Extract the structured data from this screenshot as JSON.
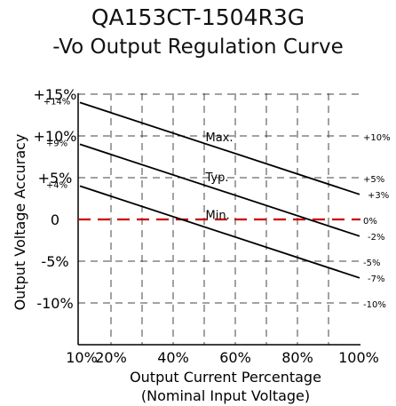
{
  "chart_data": {
    "type": "line",
    "title": "QA153CT-1504R3G",
    "subtitle": "-Vo Output Regulation Curve",
    "xlabel": "Output Current Percentage",
    "xlabel_sub": "(Nominal Input Voltage)",
    "ylabel": "Output Voltage Accuracy",
    "xlim": [
      10,
      100
    ],
    "ylim": [
      -15,
      15
    ],
    "x_ticks": [
      10,
      20,
      40,
      60,
      80,
      100
    ],
    "x_tick_labels": [
      "10%",
      "20%",
      "40%",
      "60%",
      "80%",
      "100%"
    ],
    "x_gridlines": [
      20,
      30,
      40,
      50,
      60,
      70,
      80,
      90
    ],
    "y_gridlines": [
      15,
      10,
      5,
      0,
      -5,
      -10
    ],
    "left_major_ticks": [
      {
        "value": 15,
        "label": "+15%"
      },
      {
        "value": 10,
        "label": "+10%"
      },
      {
        "value": 5,
        "label": "+5%"
      },
      {
        "value": 0,
        "label": "0"
      },
      {
        "value": -5,
        "label": "-5%"
      },
      {
        "value": -10,
        "label": "-10%"
      }
    ],
    "left_minor_labels": [
      {
        "value": 14,
        "label": "+14%"
      },
      {
        "value": 9,
        "label": "+9%"
      },
      {
        "value": 4,
        "label": "+4%"
      }
    ],
    "right_major_labels": [
      {
        "value": 10,
        "label": "+10%"
      },
      {
        "value": 5,
        "label": "+5%"
      },
      {
        "value": 0,
        "label": "0%"
      },
      {
        "value": -5,
        "label": "-5%"
      },
      {
        "value": -10,
        "label": "-10%"
      }
    ],
    "right_minor_labels": [
      {
        "value": 3,
        "label": "+3%"
      },
      {
        "value": -2,
        "label": "-2%"
      },
      {
        "value": -7,
        "label": "-7%"
      }
    ],
    "series": [
      {
        "name": "Max.",
        "x": [
          10,
          100
        ],
        "y": [
          14,
          3
        ],
        "label_x": 47,
        "label_y": 9.8
      },
      {
        "name": "Typ.",
        "x": [
          10,
          100
        ],
        "y": [
          9,
          -2
        ],
        "label_x": 47,
        "label_y": 5
      },
      {
        "name": "Min.",
        "x": [
          10,
          100
        ],
        "y": [
          4,
          -7
        ],
        "label_x": 47,
        "label_y": 0.5
      }
    ],
    "zero_line": {
      "value": 0,
      "color": "#cc0000",
      "style": "dashed"
    },
    "grid": true,
    "line_color": "#000000"
  }
}
